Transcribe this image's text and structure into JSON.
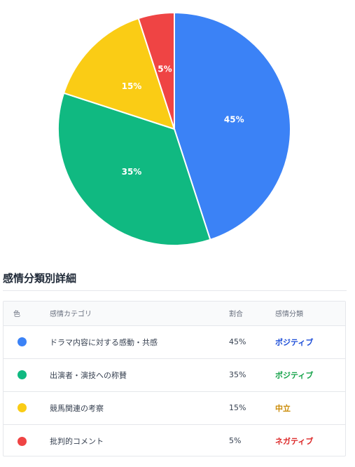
{
  "chart_data": {
    "type": "pie",
    "slices": [
      {
        "label": "ドラマ内容に対する感動・共感",
        "value": 45,
        "display": "45%",
        "color": "#3b82f6"
      },
      {
        "label": "出演者・演技への称賛",
        "value": 35,
        "display": "35%",
        "color": "#10b981"
      },
      {
        "label": "競馬関連の考察",
        "value": 15,
        "display": "15%",
        "color": "#facc15"
      },
      {
        "label": "批判的コメント",
        "value": 5,
        "display": "5%",
        "color": "#ef4444"
      }
    ],
    "legend": "none"
  },
  "details": {
    "title": "感情分類別詳細",
    "headers": {
      "color": "色",
      "category": "感情カテゴリ",
      "ratio": "割合",
      "class": "感情分類"
    },
    "rows": [
      {
        "color": "#3b82f6",
        "category": "ドラマ内容に対する感動・共感",
        "ratio": "45%",
        "class": "ポジティブ",
        "class_color": "#1d4ed8"
      },
      {
        "color": "#10b981",
        "category": "出演者・演技への称賛",
        "ratio": "35%",
        "class": "ポジティブ",
        "class_color": "#16a34a"
      },
      {
        "color": "#facc15",
        "category": "競馬関連の考察",
        "ratio": "15%",
        "class": "中立",
        "class_color": "#ca8a04"
      },
      {
        "color": "#ef4444",
        "category": "批判的コメント",
        "ratio": "5%",
        "class": "ネガティブ",
        "class_color": "#dc2626"
      }
    ]
  }
}
